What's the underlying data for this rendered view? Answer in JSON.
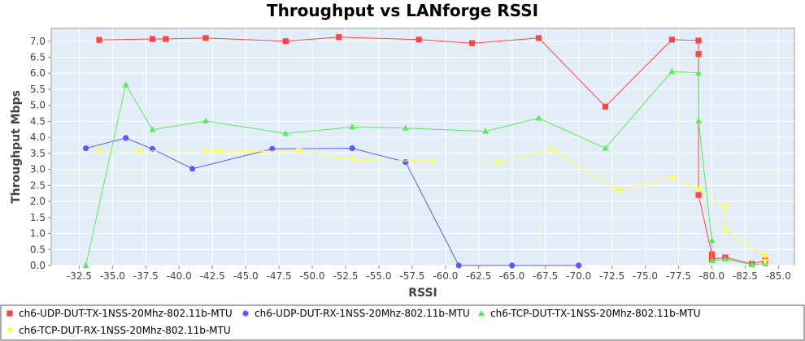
{
  "chart_data": {
    "type": "line",
    "title": "Throughput vs LANforge RSSI",
    "xlabel": "RSSI",
    "ylabel": "Throughput Mbps",
    "x_axis_reversed": true,
    "xlim": [
      -30.4,
      -86.2
    ],
    "ylim": [
      0,
      7.4
    ],
    "x_ticks": [
      -32.5,
      -35.0,
      -37.5,
      -40.0,
      -42.5,
      -45.0,
      -47.5,
      -50.0,
      -52.5,
      -55.0,
      -57.5,
      -60.0,
      -62.5,
      -65.0,
      -67.5,
      -70.0,
      -72.5,
      -75.0,
      -77.5,
      -80.0,
      -82.5,
      -85.0
    ],
    "y_ticks": [
      0.0,
      0.5,
      1.0,
      1.5,
      2.0,
      2.5,
      3.0,
      3.5,
      4.0,
      4.5,
      5.0,
      5.5,
      6.0,
      6.5,
      7.0
    ],
    "tick_decimals": 1,
    "grid": true,
    "legend_position": "bottom",
    "series": [
      {
        "name": "ch6-UDP-DUT-TX-1NSS-20Mhz-802.11b-MTU",
        "color": "#ff4444",
        "marker": "square",
        "points": [
          [
            -34.0,
            7.04
          ],
          [
            -38.0,
            7.07
          ],
          [
            -39.0,
            7.07
          ],
          [
            -42.0,
            7.1
          ],
          [
            -48.0,
            7.0
          ],
          [
            -52.0,
            7.13
          ],
          [
            -58.0,
            7.05
          ],
          [
            -62.0,
            6.94
          ],
          [
            -67.0,
            7.1
          ],
          [
            -72.0,
            4.96
          ],
          [
            -77.0,
            7.05
          ],
          [
            -79.0,
            7.02
          ],
          [
            -79.0,
            6.6
          ],
          [
            -79.0,
            2.2
          ],
          [
            -80.0,
            0.35
          ],
          [
            -80.0,
            0.2
          ],
          [
            -81.0,
            0.25
          ],
          [
            -83.0,
            0.05
          ],
          [
            -84.0,
            0.15
          ]
        ]
      },
      {
        "name": "ch6-UDP-DUT-RX-1NSS-20Mhz-802.11b-MTU",
        "color": "#5a5aff",
        "marker": "circle",
        "points": [
          [
            -33.0,
            3.66
          ],
          [
            -36.0,
            3.98
          ],
          [
            -38.0,
            3.64
          ],
          [
            -41.0,
            3.02
          ],
          [
            -47.0,
            3.64
          ],
          [
            -53.0,
            3.66
          ],
          [
            -57.0,
            3.23
          ],
          [
            -61.0,
            0.0
          ],
          [
            -65.0,
            0.0
          ],
          [
            -70.0,
            0.0
          ]
        ]
      },
      {
        "name": "ch6-TCP-DUT-TX-1NSS-20Mhz-802.11b-MTU",
        "color": "#55ee55",
        "marker": "triangle",
        "points": [
          [
            -33.0,
            0.0
          ],
          [
            -36.0,
            5.64
          ],
          [
            -38.0,
            4.24
          ],
          [
            -42.0,
            4.51
          ],
          [
            -48.0,
            4.12
          ],
          [
            -53.0,
            4.32
          ],
          [
            -57.0,
            4.29
          ],
          [
            -63.0,
            4.19
          ],
          [
            -67.0,
            4.6
          ],
          [
            -72.0,
            3.66
          ],
          [
            -77.0,
            6.06
          ],
          [
            -79.0,
            6.01
          ],
          [
            -79.0,
            4.51
          ],
          [
            -80.0,
            0.78
          ],
          [
            -80.0,
            0.15
          ],
          [
            -81.0,
            0.2
          ],
          [
            -83.0,
            0.03
          ],
          [
            -84.0,
            0.05
          ]
        ]
      },
      {
        "name": "ch6-TCP-DUT-RX-1NSS-20Mhz-802.11b-MTU",
        "color": "#ffff44",
        "marker": "triangle-down",
        "points": [
          [
            -34.0,
            3.58
          ],
          [
            -37.0,
            3.58
          ],
          [
            -42.0,
            3.58
          ],
          [
            -43.0,
            3.55
          ],
          [
            -49.0,
            3.58
          ],
          [
            -53.0,
            3.32
          ],
          [
            -59.0,
            3.24
          ],
          [
            -64.0,
            3.22
          ],
          [
            -68.0,
            3.62
          ],
          [
            -73.0,
            2.33
          ],
          [
            -77.0,
            2.75
          ],
          [
            -79.0,
            2.38
          ],
          [
            -81.0,
            1.82
          ],
          [
            -81.0,
            1.1
          ],
          [
            -84.0,
            0.3
          ],
          [
            -84.0,
            0.12
          ]
        ]
      }
    ]
  }
}
